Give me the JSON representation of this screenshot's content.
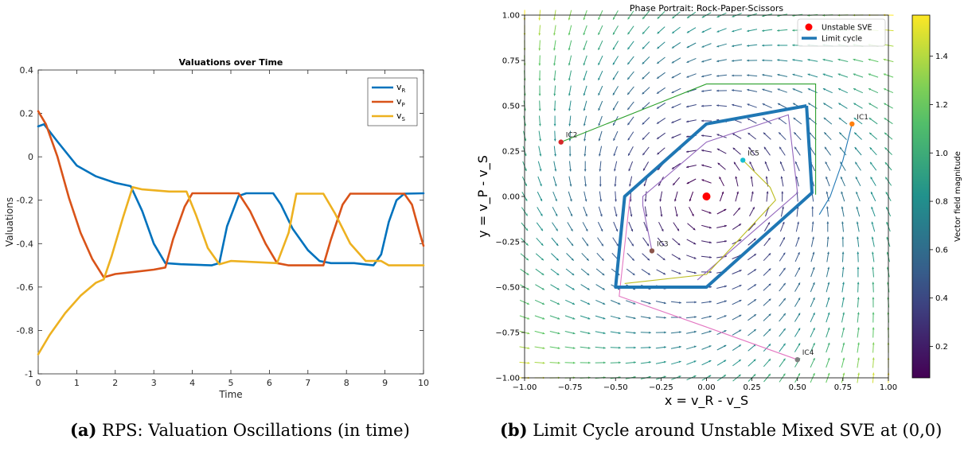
{
  "colors": {
    "vR": "#0072BD",
    "vP": "#D95319",
    "vS": "#EDB120",
    "lc": "#1f77b4",
    "sve": "#ff0000"
  },
  "captions": {
    "a_tag": "(a)",
    "a_text": "RPS: Valuation Oscillations (in time)",
    "b_tag": "(b)",
    "b_text": "Limit Cycle around Unstable Mixed SVE at (0,0)"
  },
  "chart_data": [
    {
      "type": "line",
      "title": "Valuations over Time",
      "xlabel": "Time",
      "ylabel": "Valuations",
      "xlim": [
        0,
        10
      ],
      "ylim": [
        -1,
        0.4
      ],
      "xticks": [
        0,
        1,
        2,
        3,
        4,
        5,
        6,
        7,
        8,
        9,
        10
      ],
      "yticks": [
        -1,
        -0.8,
        -0.6,
        -0.4,
        -0.2,
        0,
        0.2,
        0.4
      ],
      "ytick_labels": [
        "-1",
        "-0.8",
        "-0.6",
        "-0.4",
        "-0.2",
        "0",
        "0.2",
        "0.4"
      ],
      "legend_position": "top-right",
      "series": [
        {
          "name": "v",
          "sub": "R",
          "color": "#0072BD",
          "points": [
            [
              0,
              0.14
            ],
            [
              0.15,
              0.15
            ],
            [
              0.5,
              0.07
            ],
            [
              1,
              -0.04
            ],
            [
              1.5,
              -0.09
            ],
            [
              2,
              -0.12
            ],
            [
              2.4,
              -0.135
            ],
            [
              2.7,
              -0.25
            ],
            [
              3,
              -0.4
            ],
            [
              3.3,
              -0.49
            ],
            [
              3.7,
              -0.495
            ],
            [
              4.5,
              -0.5
            ],
            [
              4.7,
              -0.49
            ],
            [
              4.9,
              -0.32
            ],
            [
              5.2,
              -0.18
            ],
            [
              5.4,
              -0.168
            ],
            [
              6.1,
              -0.168
            ],
            [
              6.3,
              -0.22
            ],
            [
              6.6,
              -0.33
            ],
            [
              7,
              -0.43
            ],
            [
              7.3,
              -0.48
            ],
            [
              7.6,
              -0.49
            ],
            [
              8.2,
              -0.49
            ],
            [
              8.7,
              -0.5
            ],
            [
              8.9,
              -0.45
            ],
            [
              9.1,
              -0.3
            ],
            [
              9.3,
              -0.2
            ],
            [
              9.5,
              -0.17
            ],
            [
              10,
              -0.168
            ]
          ]
        },
        {
          "name": "v",
          "sub": "P",
          "color": "#D95319",
          "points": [
            [
              0,
              0.21
            ],
            [
              0.2,
              0.15
            ],
            [
              0.5,
              0.0
            ],
            [
              0.8,
              -0.19
            ],
            [
              1.1,
              -0.35
            ],
            [
              1.4,
              -0.47
            ],
            [
              1.7,
              -0.555
            ],
            [
              2,
              -0.54
            ],
            [
              2.5,
              -0.53
            ],
            [
              3,
              -0.52
            ],
            [
              3.3,
              -0.51
            ],
            [
              3.5,
              -0.38
            ],
            [
              3.8,
              -0.23
            ],
            [
              4,
              -0.168
            ],
            [
              4.8,
              -0.168
            ],
            [
              5.2,
              -0.168
            ],
            [
              5.5,
              -0.25
            ],
            [
              5.9,
              -0.4
            ],
            [
              6.2,
              -0.49
            ],
            [
              6.5,
              -0.5
            ],
            [
              7.4,
              -0.5
            ],
            [
              7.6,
              -0.38
            ],
            [
              7.9,
              -0.22
            ],
            [
              8.1,
              -0.17
            ],
            [
              9.5,
              -0.17
            ],
            [
              9.7,
              -0.22
            ],
            [
              9.9,
              -0.35
            ],
            [
              10,
              -0.41
            ]
          ]
        },
        {
          "name": "v",
          "sub": "S",
          "color": "#EDB120",
          "points": [
            [
              0,
              -0.91
            ],
            [
              0.3,
              -0.82
            ],
            [
              0.7,
              -0.72
            ],
            [
              1.1,
              -0.64
            ],
            [
              1.5,
              -0.58
            ],
            [
              1.7,
              -0.565
            ],
            [
              1.9,
              -0.46
            ],
            [
              2.2,
              -0.28
            ],
            [
              2.45,
              -0.14
            ],
            [
              2.7,
              -0.15
            ],
            [
              3.4,
              -0.16
            ],
            [
              3.85,
              -0.16
            ],
            [
              4.1,
              -0.27
            ],
            [
              4.4,
              -0.42
            ],
            [
              4.7,
              -0.495
            ],
            [
              5,
              -0.48
            ],
            [
              6.2,
              -0.49
            ],
            [
              6.5,
              -0.35
            ],
            [
              6.7,
              -0.17
            ],
            [
              7.4,
              -0.17
            ],
            [
              7.7,
              -0.26
            ],
            [
              8.1,
              -0.4
            ],
            [
              8.5,
              -0.48
            ],
            [
              8.9,
              -0.48
            ],
            [
              9.1,
              -0.5
            ],
            [
              10,
              -0.5
            ]
          ]
        }
      ]
    },
    {
      "type": "line",
      "title": "Phase Portrait: Rock-Paper-Scissors",
      "xlabel": "x = v_R - v_S",
      "ylabel": "y = v_P - v_S",
      "xlim": [
        -1,
        1
      ],
      "ylim": [
        -1,
        1
      ],
      "xticks": [
        -1,
        -0.75,
        -0.5,
        -0.25,
        0,
        0.25,
        0.5,
        0.75,
        1
      ],
      "xtick_labels": [
        "−1.00",
        "−0.75",
        "−0.50",
        "−0.25",
        "0.00",
        "0.25",
        "0.50",
        "0.75",
        "1.00"
      ],
      "yticks": [
        -1,
        -0.75,
        -0.5,
        -0.25,
        0,
        0.25,
        0.5,
        0.75,
        1
      ],
      "ytick_labels": [
        "−1.00",
        "−0.75",
        "−0.50",
        "−0.25",
        "0.00",
        "0.25",
        "0.50",
        "0.75",
        "1.00"
      ],
      "legend_position": "top-right",
      "legend": [
        {
          "label": "Unstable SVE",
          "kind": "marker",
          "color": "#ff0000"
        },
        {
          "label": "Limit cycle",
          "kind": "line",
          "color": "#1f77b4"
        }
      ],
      "colorbar": {
        "label": "Vector field magnitude",
        "ticks": [
          0.2,
          0.4,
          0.6,
          0.8,
          1.0,
          1.2,
          1.4
        ],
        "tick_labels": [
          "0.2",
          "0.4",
          "0.6",
          "0.8",
          "1.0",
          "1.2",
          "1.4"
        ],
        "range": [
          0.07,
          1.57
        ]
      },
      "sve": [
        0,
        0
      ],
      "limit_cycle": [
        [
          0.55,
          0.5
        ],
        [
          0.58,
          0.02
        ],
        [
          0.0,
          -0.5
        ],
        [
          -0.5,
          -0.5
        ],
        [
          -0.45,
          0.0
        ],
        [
          0.0,
          0.4
        ],
        [
          0.55,
          0.5
        ]
      ],
      "trajectories": [
        {
          "label": "IC1",
          "color": "#ff7f0e",
          "points": [
            [
              0.8,
              0.4
            ],
            [
              0.75,
              0.2
            ],
            [
              0.68,
              0.0
            ],
            [
              0.62,
              -0.1
            ]
          ]
        },
        {
          "label": "IC2",
          "color": "#d62728",
          "points": [
            [
              -0.8,
              0.3
            ],
            [
              -0.3,
              0.5
            ],
            [
              0.0,
              0.62
            ],
            [
              0.6,
              0.62
            ],
            [
              0.6,
              0.01
            ]
          ]
        },
        {
          "label": "IC3",
          "color": "#8c564b",
          "points": [
            [
              -0.3,
              -0.3
            ],
            [
              -0.35,
              -0.05
            ],
            [
              -0.35,
              0.0
            ],
            [
              0.0,
              0.3
            ],
            [
              0.45,
              0.45
            ],
            [
              0.5,
              0.02
            ],
            [
              -0.05,
              -0.46
            ]
          ]
        },
        {
          "label": "IC4",
          "color": "#7f7f7f",
          "points": [
            [
              0.5,
              -0.9
            ],
            [
              0.0,
              -0.72
            ],
            [
              -0.48,
              -0.55
            ],
            [
              -0.42,
              0.0
            ]
          ]
        },
        {
          "label": "IC5",
          "color": "#17becf",
          "points": [
            [
              0.2,
              0.2
            ],
            [
              0.35,
              0.05
            ],
            [
              0.38,
              -0.02
            ],
            [
              0.0,
              -0.43
            ],
            [
              -0.45,
              -0.48
            ]
          ]
        }
      ]
    }
  ]
}
